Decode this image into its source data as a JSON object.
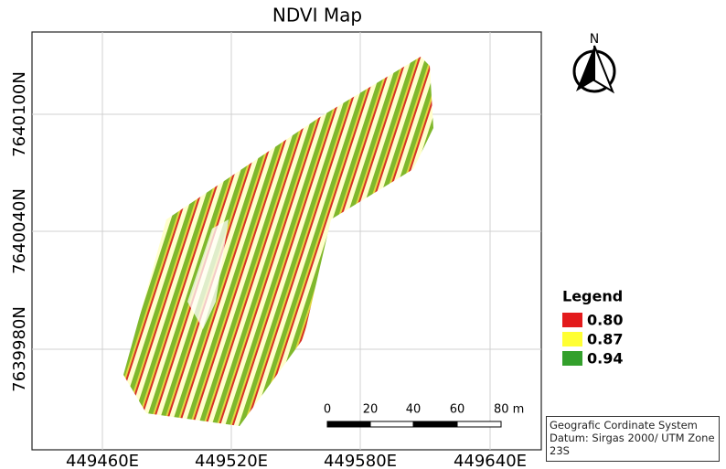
{
  "title": "NDVI Map",
  "x_labels": [
    "449460E",
    "449520E",
    "449580E",
    "449640E"
  ],
  "y_labels": [
    "7640100N",
    "7640040N",
    "7639980N"
  ],
  "north": "N",
  "legend": {
    "title": "Legend",
    "items": [
      {
        "label": "0.80",
        "color": "#e31a1c"
      },
      {
        "label": "0.87",
        "color": "#ffff33"
      },
      {
        "label": "0.94",
        "color": "#33a02c"
      }
    ]
  },
  "scale_bar": [
    "0",
    "20",
    "40",
    "60",
    "80 m"
  ],
  "info": [
    "Geografic Cordinate System",
    "Datum: Sirgas 2000/ UTM Zone 23S"
  ]
}
